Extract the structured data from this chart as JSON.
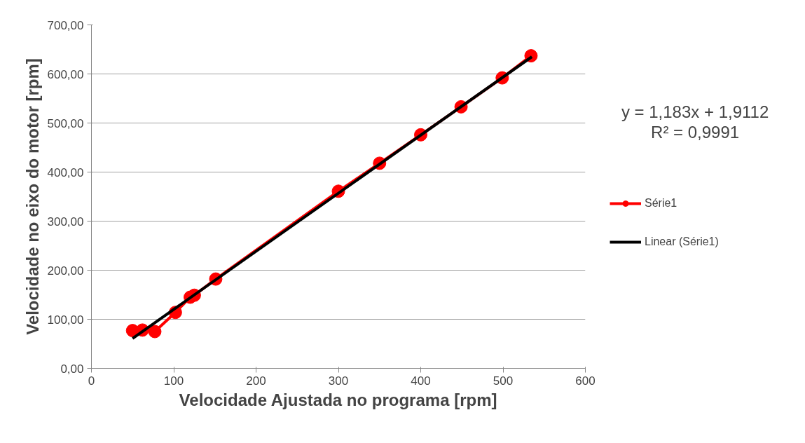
{
  "chart_data": {
    "type": "line",
    "xlabel": "Velocidade Ajustada no programa [rpm]",
    "ylabel": "Velocidade no eixo do motor [rpm]",
    "xlim": [
      0,
      600
    ],
    "xticks": [
      0,
      100,
      200,
      300,
      400,
      500,
      600
    ],
    "ylim": [
      0,
      700
    ],
    "yticks": [
      {
        "value": 0,
        "label": "0,00"
      },
      {
        "value": 100,
        "label": "100,00"
      },
      {
        "value": 200,
        "label": "200,00"
      },
      {
        "value": 300,
        "label": "300,00"
      },
      {
        "value": 400,
        "label": "400,00"
      },
      {
        "value": 500,
        "label": "500,00"
      },
      {
        "value": 600,
        "label": "600,00"
      },
      {
        "value": 700,
        "label": "700,00"
      }
    ],
    "grid": "y",
    "legend": "right",
    "marker": "circle",
    "series": [
      {
        "name": "Série1",
        "color": "#ff0000",
        "x": [
          50,
          62,
          77,
          102,
          120,
          125,
          151,
          300,
          350,
          400,
          449,
          499,
          534
        ],
        "values": [
          77,
          78,
          75,
          114,
          145,
          149,
          182,
          361,
          418,
          476,
          533,
          592,
          637
        ]
      },
      {
        "name": "Linear (Série1)",
        "color": "#000000",
        "type": "line",
        "marker": "none",
        "x": [
          50,
          535
        ],
        "values": [
          61,
          635
        ]
      }
    ],
    "annotations": [
      "y = 1,183x + 1,9112",
      "R² = 0,9991"
    ]
  }
}
